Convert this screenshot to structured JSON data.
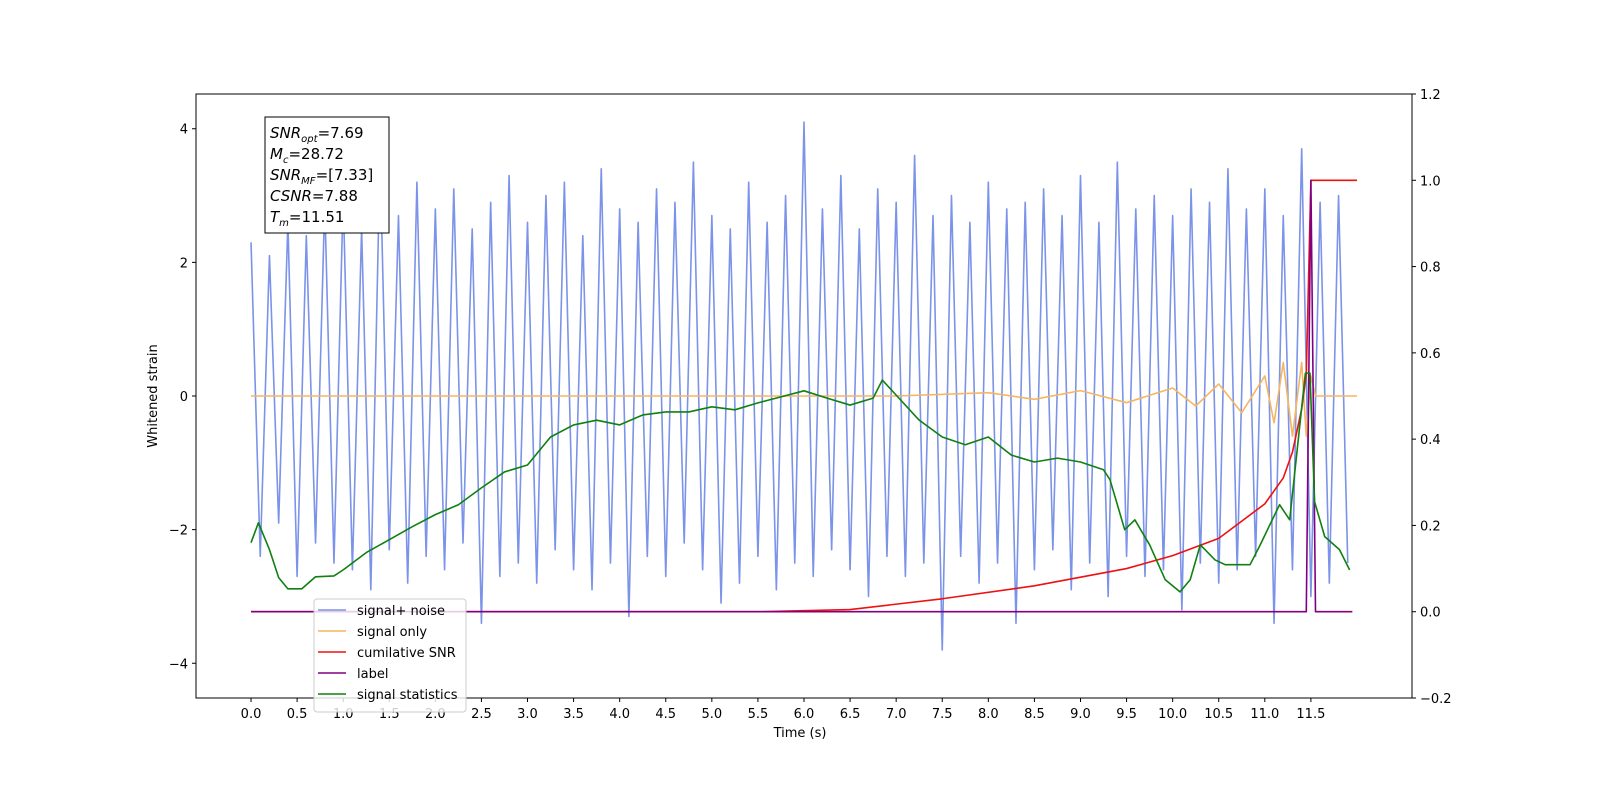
{
  "chart_data": {
    "type": "line",
    "xlabel": "Time (s)",
    "ylabel": "Whitened strain",
    "xlim": [
      -0.597,
      12.597
    ],
    "xticks": [
      {
        "value": 0,
        "label": "0.0"
      },
      0.5,
      {
        "value": 1,
        "label": "1.0"
      },
      1.5,
      {
        "value": 2,
        "label": "2.0"
      },
      2.5,
      {
        "value": 3,
        "label": "3.0"
      },
      3.5,
      {
        "value": 4,
        "label": "4.0"
      },
      4.5,
      {
        "value": 5,
        "label": "5.0"
      },
      5.5,
      {
        "value": 6,
        "label": "6.0"
      },
      6.5,
      {
        "value": 7,
        "label": "7.0"
      },
      7.5,
      {
        "value": 8,
        "label": "8.0"
      },
      8.5,
      {
        "value": 9,
        "label": "9.0"
      },
      9.5,
      {
        "value": 10,
        "label": "10.0"
      },
      10.5,
      {
        "value": 11,
        "label": "11.0"
      },
      11.5
    ],
    "ylim": [
      -4.52,
      4.52
    ],
    "yticks": [
      {
        "value": -4,
        "label": "−4"
      },
      {
        "value": -2,
        "label": "−2"
      },
      0,
      2,
      4
    ],
    "y2lim": [
      -0.2,
      1.2
    ],
    "y2ticks": [
      {
        "value": -0.2,
        "label": "−0.2"
      },
      {
        "value": 0,
        "label": "0.0"
      },
      0.2,
      0.4,
      0.6,
      0.8,
      {
        "value": 1,
        "label": "1.0"
      },
      1.2
    ],
    "legend": "lower left",
    "annotation": [
      [
        "SNR",
        "opt",
        "=7.69"
      ],
      [
        "M",
        "c",
        "=28.72"
      ],
      [
        "SNR",
        "MF",
        "=[7.33]"
      ],
      [
        "CSNR",
        "",
        "=7.88"
      ],
      [
        "T",
        "m",
        "=11.51"
      ]
    ],
    "series": [
      {
        "name": "signal+ noise",
        "color": "#7b93e8",
        "x": [
          0.0,
          0.1,
          0.2,
          0.3,
          0.4,
          0.5,
          0.6,
          0.7,
          0.8,
          0.9,
          1.0,
          1.1,
          1.2,
          1.3,
          1.4,
          1.5,
          1.6,
          1.7,
          1.8,
          1.9,
          2.0,
          2.1,
          2.2,
          2.3,
          2.4,
          2.5,
          2.6,
          2.7,
          2.8,
          2.9,
          3.0,
          3.1,
          3.2,
          3.3,
          3.4,
          3.5,
          3.6,
          3.7,
          3.8,
          3.9,
          4.0,
          4.1,
          4.2,
          4.3,
          4.4,
          4.5,
          4.6,
          4.7,
          4.8,
          4.9,
          5.0,
          5.1,
          5.2,
          5.3,
          5.4,
          5.5,
          5.6,
          5.7,
          5.8,
          5.9,
          6.0,
          6.1,
          6.2,
          6.3,
          6.4,
          6.5,
          6.6,
          6.7,
          6.8,
          6.9,
          7.0,
          7.1,
          7.2,
          7.3,
          7.4,
          7.5,
          7.6,
          7.7,
          7.8,
          7.9,
          8.0,
          8.1,
          8.2,
          8.3,
          8.4,
          8.5,
          8.6,
          8.7,
          8.8,
          8.9,
          9.0,
          9.1,
          9.2,
          9.3,
          9.4,
          9.5,
          9.6,
          9.7,
          9.8,
          9.9,
          10.0,
          10.1,
          10.2,
          10.3,
          10.4,
          10.5,
          10.6,
          10.7,
          10.8,
          10.9,
          11.0,
          11.1,
          11.2,
          11.3,
          11.4,
          11.5,
          11.6,
          11.7,
          11.8,
          11.9
        ],
        "values": [
          2.3,
          -2.4,
          2.1,
          -1.9,
          2.6,
          -2.7,
          2.4,
          -2.2,
          2.9,
          -2.5,
          3.0,
          -2.6,
          2.5,
          -2.9,
          3.6,
          -2.3,
          2.7,
          -2.8,
          3.2,
          -2.4,
          2.8,
          -2.6,
          3.1,
          -2.2,
          2.5,
          -3.4,
          2.9,
          -2.7,
          3.3,
          -2.5,
          2.6,
          -2.8,
          3.0,
          -2.3,
          3.2,
          -2.6,
          2.4,
          -2.9,
          3.4,
          -2.5,
          2.8,
          -3.3,
          2.6,
          -2.4,
          3.1,
          -2.7,
          2.9,
          -2.2,
          3.5,
          -2.6,
          2.7,
          -3.1,
          2.5,
          -2.8,
          3.2,
          -2.4,
          2.6,
          -2.9,
          3.0,
          -2.5,
          4.1,
          -2.7,
          2.8,
          -2.3,
          3.3,
          -2.6,
          2.5,
          -3.0,
          3.1,
          -2.4,
          2.9,
          -2.7,
          3.6,
          -2.5,
          2.7,
          -3.8,
          3.0,
          -2.4,
          2.6,
          -2.8,
          3.2,
          -2.5,
          2.8,
          -3.4,
          2.9,
          -2.6,
          3.1,
          -2.3,
          2.7,
          -2.9,
          3.3,
          -2.5,
          2.6,
          -3.0,
          3.5,
          -2.4,
          2.8,
          -2.7,
          3.0,
          -2.6,
          2.7,
          -3.2,
          3.1,
          -2.5,
          2.9,
          -2.8,
          3.4,
          -2.6,
          2.8,
          -2.4,
          3.1,
          -3.4,
          2.7,
          -2.6,
          3.7,
          -3.0,
          2.9,
          -2.8,
          3.0,
          -2.5
        ]
      },
      {
        "name": "signal only",
        "color": "#f5b563",
        "x": [
          0,
          7,
          8,
          8.5,
          9,
          9.5,
          10,
          10.25,
          10.5,
          10.75,
          11,
          11.1,
          11.2,
          11.3,
          11.4,
          11.45,
          11.5,
          11.55,
          11.6,
          12
        ],
        "values": [
          0,
          0,
          0.05,
          -0.05,
          0.08,
          -0.1,
          0.12,
          -0.15,
          0.18,
          -0.25,
          0.3,
          -0.4,
          0.5,
          -0.6,
          0.5,
          -0.6,
          0.3,
          0,
          0,
          0
        ]
      },
      {
        "name": "cumilative SNR",
        "color": "#ee1111",
        "axis": "y2",
        "x": [
          0,
          5.5,
          6.5,
          7.5,
          8.5,
          9.5,
          10.0,
          10.5,
          11.0,
          11.2,
          11.3,
          11.4,
          11.45,
          11.5,
          11.55,
          12.0
        ],
        "values": [
          0,
          0,
          0.005,
          0.03,
          0.06,
          0.1,
          0.13,
          0.17,
          0.25,
          0.31,
          0.37,
          0.47,
          0.55,
          1.0,
          1.0,
          1.0
        ]
      },
      {
        "name": "label",
        "color": "#800080",
        "axis": "y2",
        "x": [
          0,
          11.45,
          11.5,
          11.55,
          11.95
        ],
        "values": [
          0,
          0,
          1.0,
          0,
          0
        ]
      },
      {
        "name": "signal statistics",
        "color": "#108010",
        "axis": "y2",
        "x": [
          0,
          0.08,
          0.2,
          0.3,
          0.4,
          0.55,
          0.7,
          0.9,
          1.0,
          1.25,
          1.5,
          1.75,
          2.0,
          2.25,
          2.5,
          2.75,
          3.0,
          3.25,
          3.5,
          3.75,
          4.0,
          4.25,
          4.5,
          4.75,
          5.0,
          5.25,
          5.5,
          5.75,
          6.0,
          6.25,
          6.5,
          6.75,
          6.85,
          7.0,
          7.25,
          7.5,
          7.75,
          8.0,
          8.25,
          8.5,
          8.75,
          9.0,
          9.25,
          9.32,
          9.48,
          9.59,
          9.75,
          9.92,
          10.08,
          10.19,
          10.3,
          10.46,
          10.57,
          10.84,
          10.95,
          11.16,
          11.27,
          11.44,
          11.49,
          11.54,
          11.65,
          11.81,
          11.92
        ],
        "values": [
          0.16,
          0.206,
          0.144,
          0.079,
          0.053,
          0.053,
          0.081,
          0.083,
          0.097,
          0.137,
          0.167,
          0.197,
          0.225,
          0.248,
          0.287,
          0.324,
          0.34,
          0.405,
          0.433,
          0.444,
          0.433,
          0.456,
          0.463,
          0.463,
          0.475,
          0.468,
          0.484,
          0.498,
          0.512,
          0.495,
          0.479,
          0.495,
          0.537,
          0.502,
          0.444,
          0.405,
          0.387,
          0.405,
          0.363,
          0.347,
          0.356,
          0.347,
          0.329,
          0.306,
          0.19,
          0.213,
          0.155,
          0.074,
          0.046,
          0.074,
          0.155,
          0.12,
          0.109,
          0.109,
          0.155,
          0.248,
          0.213,
          0.553,
          0.553,
          0.255,
          0.174,
          0.144,
          0.097
        ]
      }
    ]
  }
}
